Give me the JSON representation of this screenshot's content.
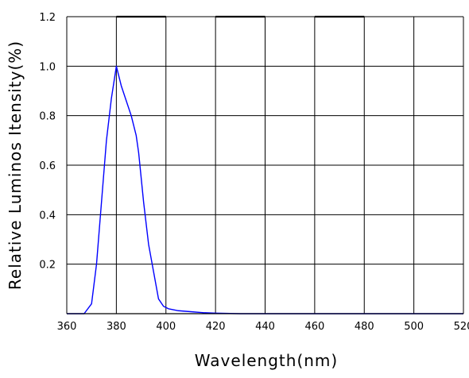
{
  "chart_data": {
    "type": "line",
    "title": "",
    "xlabel": "Wavelength(nm)",
    "ylabel": "Relative Luminos Itensity(%)",
    "xlim": [
      360,
      520
    ],
    "ylim": [
      0,
      1.2
    ],
    "x_ticks": [
      "360",
      "380",
      "400",
      "420",
      "440",
      "460",
      "480",
      "500",
      "520"
    ],
    "y_ticks": [
      "0.2",
      "0.4",
      "0.6",
      "0.8",
      "1.0",
      "1.2"
    ],
    "grid": true,
    "series": [
      {
        "color": "#0000ff",
        "points": [
          [
            360,
            0
          ],
          [
            367,
            0
          ],
          [
            370,
            0.04
          ],
          [
            372,
            0.2
          ],
          [
            374,
            0.45
          ],
          [
            376,
            0.7
          ],
          [
            378,
            0.87
          ],
          [
            380,
            1.0
          ],
          [
            382,
            0.92
          ],
          [
            384,
            0.86
          ],
          [
            386,
            0.8
          ],
          [
            388,
            0.72
          ],
          [
            389,
            0.65
          ],
          [
            391,
            0.45
          ],
          [
            393,
            0.28
          ],
          [
            395,
            0.17
          ],
          [
            397,
            0.06
          ],
          [
            399,
            0.03
          ],
          [
            401,
            0.02
          ],
          [
            405,
            0.012
          ],
          [
            410,
            0.008
          ],
          [
            415,
            0.004
          ],
          [
            420,
            0.002
          ],
          [
            430,
            0
          ],
          [
            440,
            0
          ],
          [
            460,
            0
          ],
          [
            480,
            0
          ],
          [
            500,
            0
          ],
          [
            520,
            0
          ]
        ]
      }
    ]
  }
}
